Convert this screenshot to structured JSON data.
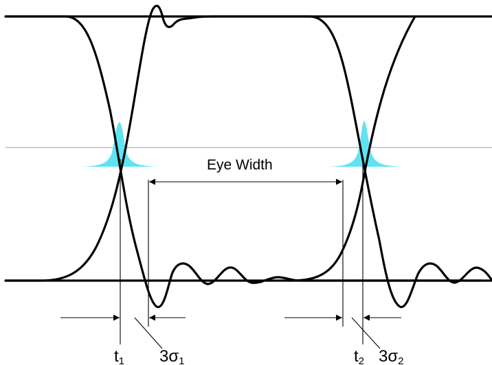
{
  "labels": {
    "eye_width": "Eye Width",
    "t1": {
      "base": "t",
      "sub": "1"
    },
    "sigma1": {
      "base": "3σ",
      "sub": "1"
    },
    "t2": {
      "base": "t",
      "sub": "2"
    },
    "sigma2": {
      "base": "3σ",
      "sub": "2"
    }
  },
  "colors": {
    "trace": "#000000",
    "midline": "#9a9a9a",
    "jitter_distribution": "#5fe3f2"
  }
}
